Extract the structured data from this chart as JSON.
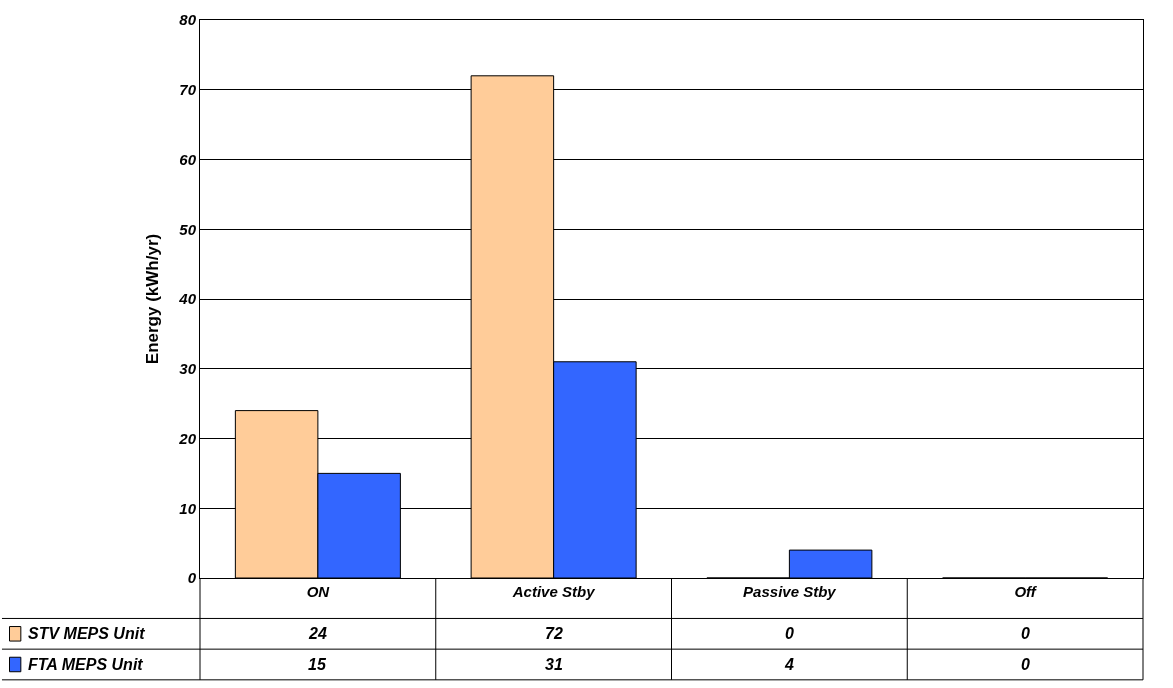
{
  "chart_data": {
    "type": "bar",
    "ylabel": "Energy (kWh/yr)",
    "categories": [
      "ON",
      "Active Stby",
      "Passive Stby",
      "Off"
    ],
    "series": [
      {
        "name": "STV MEPS Unit",
        "color": "#ffcc99",
        "values": [
          24,
          72,
          0,
          0
        ]
      },
      {
        "name": "FTA MEPS Unit",
        "color": "#3366ff",
        "values": [
          15,
          31,
          4,
          0
        ]
      }
    ],
    "ylim": [
      0,
      80
    ],
    "yticks": [
      0,
      10,
      20,
      30,
      40,
      50,
      60,
      70,
      80
    ],
    "grid": "y",
    "legend": "bottom left",
    "data_labels": true
  }
}
